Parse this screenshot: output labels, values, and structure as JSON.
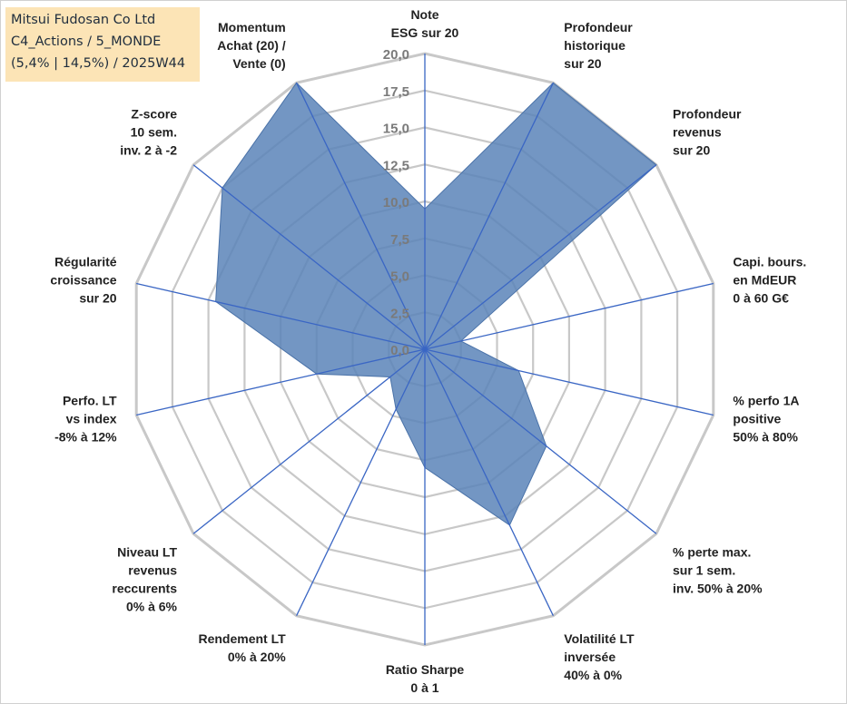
{
  "title_box": {
    "line1": "Mitsui Fudosan Co Ltd",
    "line2": "C4_Actions / 5_MONDE",
    "line3": "(5,4% | 14,5%) / 2025W44"
  },
  "colors": {
    "fill": "#5b84b8",
    "spoke": "#3a66c4",
    "ring": "#c8c8c8",
    "tick": "#7a7a7a"
  },
  "chart_data": {
    "type": "radar",
    "title": "Mitsui Fudosan Co Ltd",
    "rmin": 0,
    "rmax": 20,
    "ticks": [
      "0,0",
      "2,5",
      "5,0",
      "7,5",
      "10,0",
      "12,5",
      "15,0",
      "17,5",
      "20,0"
    ],
    "tick_values": [
      0,
      2.5,
      5,
      7.5,
      10,
      12.5,
      15,
      17.5,
      20
    ],
    "axes": [
      {
        "lines": [
          "Note",
          "ESG sur 20"
        ],
        "value": 9.5
      },
      {
        "lines": [
          "Profondeur",
          "historique",
          "sur 20"
        ],
        "value": 20
      },
      {
        "lines": [
          "Profondeur",
          "revenus",
          "sur 20"
        ],
        "value": 20
      },
      {
        "lines": [
          "Capi. bours.",
          "en MdEUR",
          "0 à 60 G€"
        ],
        "value": 2.5
      },
      {
        "lines": [
          "% perfo 1A",
          "positive",
          "50% à 80%"
        ],
        "value": 6.5
      },
      {
        "lines": [
          "% perte max.",
          "sur 1 sem.",
          "inv. 50% à 20%"
        ],
        "value": 10.5
      },
      {
        "lines": [
          "Volatilité LT",
          "inversée",
          "40% à 0%"
        ],
        "value": 13.2
      },
      {
        "lines": [
          "Ratio Sharpe",
          "0 à 1"
        ],
        "value": 8
      },
      {
        "lines": [
          "Rendement LT",
          "0% à 20%"
        ],
        "value": 4.5
      },
      {
        "lines": [
          "Niveau LT",
          "revenus",
          "reccurents",
          "0% à 6%"
        ],
        "value": 3
      },
      {
        "lines": [
          "Perfo. LT",
          "vs index",
          "-8% à 12%"
        ],
        "value": 7.5
      },
      {
        "lines": [
          "Régularité",
          "croissance",
          "sur 20"
        ],
        "value": 14.5
      },
      {
        "lines": [
          "Z-score",
          "10 sem.",
          "inv. 2 à -2"
        ],
        "value": 17.5
      },
      {
        "lines": [
          "Momentum",
          "Achat (20) /",
          "Vente (0)"
        ],
        "value": 20
      }
    ]
  }
}
